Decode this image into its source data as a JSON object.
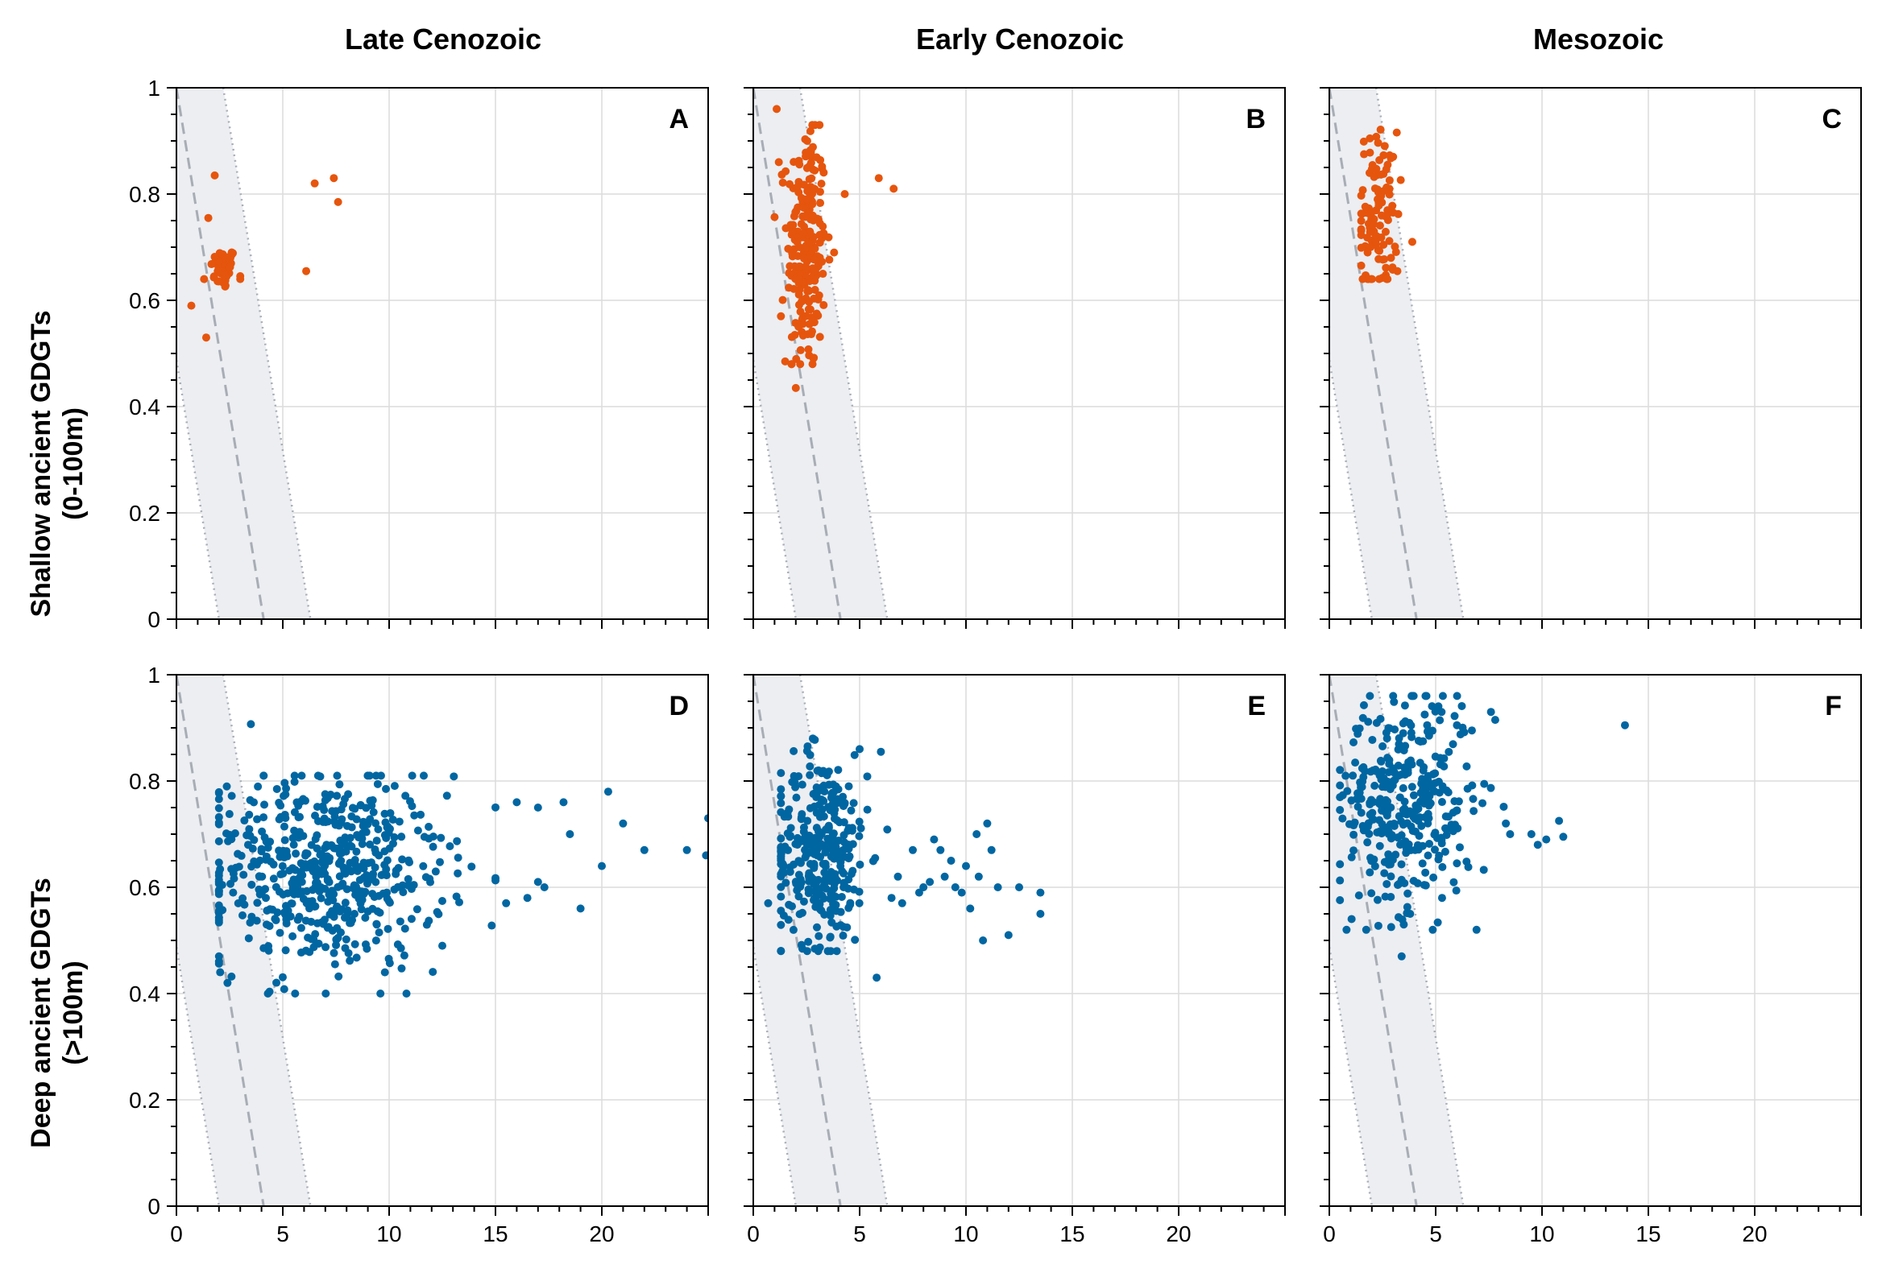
{
  "figure": {
    "column_titles": [
      "Late Cenozoic",
      "Early Cenozoic",
      "Mesozoic"
    ],
    "row_titles": [
      {
        "line1": "Shallow ancient GDGTs",
        "line2": "(0-100m)"
      },
      {
        "line1": "Deep ancient GDGTs",
        "line2": "(>100m)"
      }
    ],
    "colors": {
      "shallow": "#e6550d",
      "deep": "#0066a1",
      "band": "#eceef2",
      "reference_line": "#a8adb5",
      "grid": "#dcdcdc"
    }
  },
  "chart_data": [
    {
      "type": "scatter",
      "panel": "A",
      "row": 0,
      "col": 0,
      "color": "#e6550d",
      "xlim": [
        0,
        25
      ],
      "ylim": [
        0,
        1
      ],
      "xticks": [
        "0",
        "5",
        "10",
        "15",
        "20"
      ],
      "yticks": [
        "0",
        "0.2",
        "0.4",
        "0.6",
        "0.8",
        "1"
      ],
      "grid": true,
      "cluster": {
        "n": 45,
        "cx": 2.2,
        "sx": 0.3,
        "cy": 0.66,
        "sy": 0.02,
        "xmin": 1.2,
        "xmax": 3.0,
        "ymin": 0.62,
        "ymax": 0.69
      },
      "points": [
        [
          1.8,
          0.835
        ],
        [
          1.5,
          0.755
        ],
        [
          0.7,
          0.59
        ],
        [
          1.4,
          0.53
        ],
        [
          1.3,
          0.64
        ],
        [
          2.6,
          0.69
        ],
        [
          6.5,
          0.82
        ],
        [
          7.4,
          0.83
        ],
        [
          7.6,
          0.785
        ],
        [
          6.1,
          0.655
        ],
        [
          3.0,
          0.64
        ]
      ]
    },
    {
      "type": "scatter",
      "panel": "B",
      "row": 0,
      "col": 1,
      "color": "#e6550d",
      "xlim": [
        0,
        25
      ],
      "ylim": [
        0,
        1
      ],
      "xticks": [
        "0",
        "5",
        "10",
        "15",
        "20"
      ],
      "yticks": [
        "0",
        "0.2",
        "0.4",
        "0.6",
        "0.8",
        "1"
      ],
      "grid": true,
      "cluster": {
        "n": 230,
        "cx": 2.5,
        "sx": 0.45,
        "cy": 0.7,
        "sy": 0.12,
        "xmin": 1.0,
        "xmax": 3.8,
        "ymin": 0.48,
        "ymax": 0.93
      },
      "points": [
        [
          1.1,
          0.96
        ],
        [
          2.0,
          0.435
        ],
        [
          1.5,
          0.485
        ],
        [
          4.3,
          0.8
        ],
        [
          5.9,
          0.83
        ],
        [
          6.6,
          0.81
        ],
        [
          3.8,
          0.69
        ],
        [
          1.2,
          0.86
        ],
        [
          1.3,
          0.57
        ]
      ]
    },
    {
      "type": "scatter",
      "panel": "C",
      "row": 0,
      "col": 2,
      "color": "#e6550d",
      "xlim": [
        0,
        25
      ],
      "ylim": [
        0,
        1
      ],
      "xticks": [
        "0",
        "5",
        "10",
        "15",
        "20"
      ],
      "yticks": [
        "0",
        "0.2",
        "0.4",
        "0.6",
        "0.8",
        "1"
      ],
      "grid": true,
      "cluster": {
        "n": 110,
        "cx": 2.3,
        "sx": 0.45,
        "cy": 0.76,
        "sy": 0.08,
        "xmin": 1.5,
        "xmax": 3.8,
        "ymin": 0.64,
        "ymax": 0.95
      },
      "points": [
        [
          3.0,
          0.87
        ],
        [
          2.7,
          0.64
        ],
        [
          3.2,
          0.655
        ],
        [
          1.8,
          0.69
        ],
        [
          3.9,
          0.71
        ]
      ]
    },
    {
      "type": "scatter",
      "panel": "D",
      "row": 1,
      "col": 0,
      "color": "#0066a1",
      "xlim": [
        0,
        25
      ],
      "ylim": [
        0,
        1
      ],
      "xticks": [
        "0",
        "5",
        "10",
        "15",
        "20"
      ],
      "yticks": [
        "0",
        "0.2",
        "0.4",
        "0.6",
        "0.8",
        "1"
      ],
      "grid": true,
      "cluster": {
        "n": 560,
        "cx": 7.0,
        "sx": 2.8,
        "cy": 0.63,
        "sy": 0.09,
        "xmin": 2.0,
        "xmax": 15.0,
        "ymin": 0.4,
        "ymax": 0.81
      },
      "points": [
        [
          3.5,
          0.907
        ],
        [
          2.6,
          0.772
        ],
        [
          2.0,
          0.47
        ],
        [
          2.4,
          0.42
        ],
        [
          4.3,
          0.4
        ],
        [
          16.0,
          0.76
        ],
        [
          17.0,
          0.75
        ],
        [
          18.2,
          0.76
        ],
        [
          18.5,
          0.7
        ],
        [
          20.3,
          0.78
        ],
        [
          21.0,
          0.72
        ],
        [
          22.0,
          0.67
        ],
        [
          24.0,
          0.67
        ],
        [
          24.9,
          0.66
        ],
        [
          25.0,
          0.73
        ],
        [
          19.0,
          0.56
        ],
        [
          17.3,
          0.6
        ],
        [
          20.0,
          0.64
        ],
        [
          16.5,
          0.58
        ],
        [
          15.5,
          0.57
        ],
        [
          17.0,
          0.61
        ],
        [
          12.5,
          0.49
        ],
        [
          9.8,
          0.44
        ]
      ]
    },
    {
      "type": "scatter",
      "panel": "E",
      "row": 1,
      "col": 1,
      "color": "#0066a1",
      "xlim": [
        0,
        25
      ],
      "ylim": [
        0,
        1
      ],
      "xticks": [
        "0",
        "5",
        "10",
        "15",
        "20"
      ],
      "yticks": [
        "0",
        "0.2",
        "0.4",
        "0.6",
        "0.8",
        "1"
      ],
      "grid": true,
      "cluster": {
        "n": 330,
        "cx": 3.2,
        "sx": 1.1,
        "cy": 0.67,
        "sy": 0.09,
        "xmin": 1.3,
        "xmax": 6.3,
        "ymin": 0.48,
        "ymax": 0.88
      },
      "points": [
        [
          0.7,
          0.57
        ],
        [
          5.8,
          0.43
        ],
        [
          6.0,
          0.855
        ],
        [
          5.0,
          0.86
        ],
        [
          2.8,
          0.88
        ],
        [
          7.5,
          0.67
        ],
        [
          8.0,
          0.6
        ],
        [
          8.5,
          0.69
        ],
        [
          9.0,
          0.62
        ],
        [
          9.5,
          0.6
        ],
        [
          10.0,
          0.64
        ],
        [
          10.5,
          0.7
        ],
        [
          11.0,
          0.72
        ],
        [
          11.2,
          0.67
        ],
        [
          10.8,
          0.5
        ],
        [
          12.0,
          0.51
        ],
        [
          11.5,
          0.6
        ],
        [
          13.5,
          0.59
        ],
        [
          13.5,
          0.55
        ],
        [
          12.5,
          0.6
        ],
        [
          7.0,
          0.57
        ],
        [
          6.8,
          0.62
        ],
        [
          8.8,
          0.67
        ],
        [
          9.8,
          0.59
        ],
        [
          7.8,
          0.59
        ],
        [
          10.2,
          0.56
        ],
        [
          6.5,
          0.58
        ],
        [
          8.3,
          0.61
        ],
        [
          9.3,
          0.65
        ],
        [
          10.6,
          0.62
        ]
      ]
    },
    {
      "type": "scatter",
      "panel": "F",
      "row": 1,
      "col": 2,
      "color": "#0066a1",
      "xlim": [
        0,
        25
      ],
      "ylim": [
        0,
        1
      ],
      "xticks": [
        "0",
        "5",
        "10",
        "15",
        "20"
      ],
      "yticks": [
        "0",
        "0.2",
        "0.4",
        "0.6",
        "0.8",
        "1"
      ],
      "grid": true,
      "cluster": {
        "n": 360,
        "cx": 3.6,
        "sx": 1.6,
        "cy": 0.76,
        "sy": 0.1,
        "xmin": 0.5,
        "xmax": 8.5,
        "ymin": 0.52,
        "ymax": 0.96
      },
      "points": [
        [
          13.9,
          0.905
        ],
        [
          7.6,
          0.93
        ],
        [
          7.8,
          0.915
        ],
        [
          6.0,
          0.905
        ],
        [
          4.6,
          0.905
        ],
        [
          10.8,
          0.725
        ],
        [
          11.0,
          0.695
        ],
        [
          10.2,
          0.69
        ],
        [
          9.5,
          0.7
        ],
        [
          9.8,
          0.68
        ],
        [
          8.3,
          0.72
        ],
        [
          8.5,
          0.7
        ],
        [
          3.4,
          0.47
        ],
        [
          3.5,
          0.53
        ],
        [
          5.3,
          0.58
        ],
        [
          3.8,
          0.55
        ]
      ]
    }
  ],
  "reference": {
    "line": {
      "x_at_y1": 0.0,
      "x_at_y0": 4.1
    },
    "band_lower": {
      "x_at_y1": -2.1,
      "x_at_y0": 2.0
    },
    "band_upper": {
      "x_at_y1": 2.2,
      "x_at_y0": 6.3
    }
  }
}
